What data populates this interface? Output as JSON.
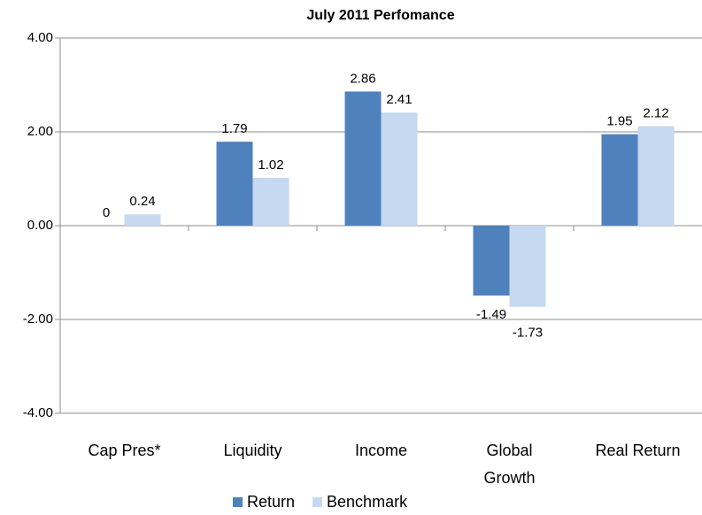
{
  "chart_data": {
    "type": "bar",
    "title": "July 2011 Perfomance",
    "categories": [
      "Cap Pres*",
      "Liquidity",
      "Income",
      "Global Growth",
      "Real Return"
    ],
    "series": [
      {
        "name": "Return",
        "color": "#4f81bd",
        "values": [
          0,
          1.79,
          2.86,
          -1.49,
          1.95
        ]
      },
      {
        "name": "Benchmark",
        "color": "#c6d9f1",
        "values": [
          0.24,
          1.02,
          2.41,
          -1.73,
          2.12
        ]
      }
    ],
    "ylim": [
      -4,
      4
    ],
    "yticks": [
      {
        "value": -4,
        "label": "-4.00"
      },
      {
        "value": -2,
        "label": "-2.00"
      },
      {
        "value": 0,
        "label": "0.00"
      },
      {
        "value": 2,
        "label": "2.00"
      },
      {
        "value": 4,
        "label": "4.00"
      }
    ],
    "grid": true,
    "legend": "bottom"
  }
}
